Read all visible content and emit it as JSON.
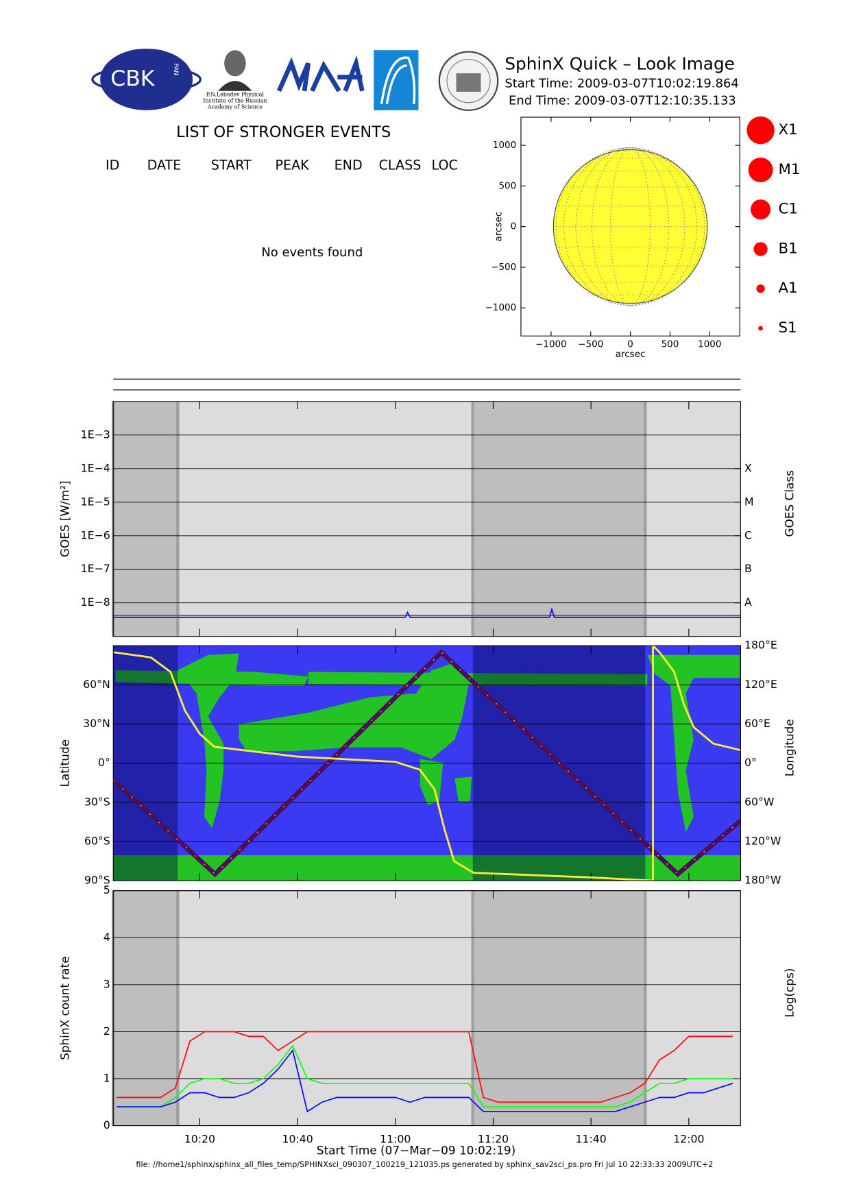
{
  "header": {
    "title": "SphinX Quick – Look Image",
    "start_time": "Start Time: 2009-03-07T10:02:19.864",
    "end_time": "End Time: 2009-03-07T12:10:35.133",
    "logos": [
      "CBK",
      "PAN",
      "P.N.Lebedev Physical",
      "Institute of the Russian",
      "Academy of Science"
    ]
  },
  "events": {
    "title": "LIST OF STRONGER EVENTS",
    "columns": [
      "ID",
      "DATE",
      "START",
      "PEAK",
      "END",
      "CLASS",
      "LOC"
    ],
    "message": "No events found"
  },
  "size_legend": [
    "X1",
    "M1",
    "C1",
    "B1",
    "A1",
    "S1"
  ],
  "footer": "file: //home1/sphinx/sphinx_all_files_temp/SPHINXsci_090307_100219_121035.ps generated by sphinx_sav2sci_ps.pro Fri Jul 10 22:33:33 2009UTC+2",
  "chart_data": [
    {
      "type": "solar-disk",
      "xlabel": "arcsec",
      "ylabel": "arcsec",
      "radius": 970,
      "color": "#ffff33",
      "xlim": [
        -1380,
        1380
      ],
      "ylim": [
        -1346,
        1346
      ],
      "xticks": [
        {
          "value": -1000,
          "label": "−1000"
        },
        {
          "value": -500,
          "label": "−500"
        },
        0,
        500,
        1000
      ],
      "yticks": [
        {
          "value": -1000,
          "label": "−1000"
        },
        {
          "value": -500,
          "label": "−500"
        },
        0,
        500,
        1000
      ]
    },
    {
      "type": "line",
      "log_scale": true,
      "ylabel": "GOES [W/m²]",
      "y2label": "GOES Class",
      "background": "#dcdcdc",
      "shade_color": "#bebebe",
      "xlim": [
        "10:02:19",
        "12:10:35"
      ],
      "xticks": [
        "10:20",
        "10:40",
        "11:00",
        "11:20",
        "11:40",
        "12:00"
      ],
      "shaded": [
        [
          "10:02:19",
          "10:15:30"
        ],
        [
          "11:15:50",
          "11:51:05"
        ]
      ],
      "ylim": [
        1e-09,
        0.01
      ],
      "yticks": [
        {
          "value": 1e-08,
          "label": "1E−8"
        },
        {
          "value": 1e-07,
          "label": "1E−7"
        },
        {
          "value": 1e-06,
          "label": "1E−6"
        },
        {
          "value": 1e-05,
          "label": "1E−5"
        },
        {
          "value": 0.0001,
          "label": "1E−4"
        },
        {
          "value": 0.001,
          "label": "1E−3"
        }
      ],
      "y2lim": [
        1e-09,
        0.01
      ],
      "y2ticks": [
        {
          "value": 1e-08,
          "label": "A"
        },
        {
          "value": 1e-07,
          "label": "B"
        },
        {
          "value": 1e-06,
          "label": "C"
        },
        {
          "value": 1e-05,
          "label": "M"
        },
        {
          "value": 0.0001,
          "label": "X"
        }
      ],
      "x": [
        "10:02:19",
        "10:30:00",
        "11:02:00",
        "11:02:30",
        "11:03:00",
        "11:31:30",
        "11:32:00",
        "11:32:30",
        "12:10:35"
      ],
      "series": [
        {
          "color": "#ff2020",
          "values": [
            4.2e-09,
            4.2e-09,
            4.2e-09,
            4.2e-09,
            4.2e-09,
            4.2e-09,
            4.2e-09,
            4.2e-09,
            4.2e-09
          ]
        },
        {
          "color": "#1010ff",
          "values": [
            3.7e-09,
            3.7e-09,
            3.7e-09,
            5.2e-09,
            3.7e-09,
            3.7e-09,
            6.5e-09,
            3.7e-09,
            3.7e-09
          ]
        }
      ]
    },
    {
      "type": "map",
      "ylabel": "Latitude",
      "y2label": "Longitude",
      "background": "#3a3af2",
      "shade_color": "rgba(0,0,60,0.4)",
      "xlim": [
        "10:02:19",
        "12:10:35"
      ],
      "xticks": [
        "10:20",
        "10:40",
        "11:00",
        "11:20",
        "11:40",
        "12:00"
      ],
      "shaded": [
        [
          "10:02:19",
          "10:15:30"
        ],
        [
          "11:15:50",
          "11:51:05"
        ]
      ],
      "ylim": [
        -90,
        90
      ],
      "yticks": [
        {
          "value": -90,
          "label": "90°S"
        },
        {
          "value": -60,
          "label": "60°S"
        },
        {
          "value": -30,
          "label": "30°S"
        },
        {
          "value": 0,
          "label": "0°"
        },
        {
          "value": 30,
          "label": "30°N"
        },
        {
          "value": 60,
          "label": "60°N"
        }
      ],
      "y2lim": [
        -180,
        180
      ],
      "y2ticks": [
        {
          "value": -180,
          "label": "180°W"
        },
        {
          "value": -120,
          "label": "120°W"
        },
        {
          "value": -60,
          "label": "60°W"
        },
        {
          "value": 0,
          "label": "0°"
        },
        {
          "value": 60,
          "label": "60°E"
        },
        {
          "value": 120,
          "label": "120°E"
        },
        {
          "value": 180,
          "label": "180°E"
        }
      ],
      "series": [
        {
          "color": "#4a0f58",
          "x": [
            "10:02:19",
            "10:23:07",
            "11:09:25",
            "11:57:45",
            "12:10:35"
          ],
          "values": [
            -13,
            -85,
            85,
            -85,
            -44
          ]
        },
        {
          "color": "#ffee33",
          "axis": "y2",
          "x": [
            "10:02:19",
            "10:10:00",
            "10:14:00",
            "10:17:00",
            "10:20:00",
            "10:23:00",
            "10:40:00",
            "11:00:00",
            "11:05:00",
            "11:08:00",
            "11:10:00",
            "11:12:00",
            "11:16:00",
            "11:40:00",
            "11:52:40",
            "11:52:40",
            "11:54:00",
            "11:57:00",
            "11:59:00",
            "12:01:00",
            "12:05:00",
            "12:10:35"
          ],
          "values": [
            170,
            162,
            140,
            80,
            45,
            25,
            10,
            2,
            -10,
            -40,
            -100,
            -150,
            -168,
            -175,
            -180,
            180,
            170,
            140,
            90,
            55,
            30,
            20
          ]
        }
      ]
    },
    {
      "type": "line",
      "ylabel": "SphinX count rate",
      "y2label": "Log(cps)",
      "xlabel": "Start Time (07−Mar−09 10:02:19)",
      "background": "#dcdcdc",
      "shade_color": "#bebebe",
      "xlim": [
        "10:02:19",
        "12:10:35"
      ],
      "xticks": [
        "10:20",
        "10:40",
        "11:00",
        "11:20",
        "11:40",
        "12:00"
      ],
      "shaded": [
        [
          "10:02:19",
          "10:15:30"
        ],
        [
          "11:15:50",
          "11:51:05"
        ]
      ],
      "ylim": [
        0,
        5
      ],
      "yticks": [
        0,
        1,
        2,
        3,
        4,
        5
      ],
      "x": [
        "10:03",
        "10:06",
        "10:09",
        "10:12",
        "10:15",
        "10:18",
        "10:21",
        "10:24",
        "10:27",
        "10:30",
        "10:33",
        "10:36",
        "10:39",
        "10:42",
        "10:45",
        "10:48",
        "10:51",
        "10:54",
        "10:57",
        "11:00",
        "11:03",
        "11:06",
        "11:09",
        "11:12",
        "11:15",
        "11:18",
        "11:21",
        "11:24",
        "11:27",
        "11:30",
        "11:33",
        "11:36",
        "11:39",
        "11:42",
        "11:45",
        "11:48",
        "11:51",
        "11:54",
        "11:57",
        "12:00",
        "12:03",
        "12:06",
        "12:09"
      ],
      "series": [
        {
          "color": "#ff1010",
          "values": [
            0.6,
            0.6,
            0.6,
            0.6,
            0.8,
            1.8,
            2.0,
            2.0,
            2.0,
            1.9,
            1.9,
            1.6,
            1.8,
            2.0,
            2.0,
            2.0,
            2.0,
            2.0,
            2.0,
            2.0,
            2.0,
            2.0,
            2.0,
            2.0,
            2.0,
            0.6,
            0.5,
            0.5,
            0.5,
            0.5,
            0.5,
            0.5,
            0.5,
            0.5,
            0.6,
            0.7,
            0.9,
            1.4,
            1.6,
            1.9,
            1.9,
            1.9,
            1.9
          ]
        },
        {
          "color": "#10ff10",
          "values": [
            0.4,
            0.4,
            0.4,
            0.4,
            0.6,
            0.9,
            1.0,
            1.0,
            0.9,
            0.9,
            1.0,
            1.3,
            1.7,
            1.0,
            0.9,
            0.9,
            0.9,
            0.9,
            0.9,
            0.9,
            0.9,
            0.9,
            0.9,
            0.9,
            0.9,
            0.4,
            0.4,
            0.4,
            0.4,
            0.4,
            0.4,
            0.4,
            0.4,
            0.4,
            0.4,
            0.5,
            0.7,
            0.9,
            0.9,
            1.0,
            1.0,
            1.0,
            1.0
          ]
        },
        {
          "color": "#1010ff",
          "values": [
            0.4,
            0.4,
            0.4,
            0.4,
            0.5,
            0.7,
            0.7,
            0.6,
            0.6,
            0.7,
            0.9,
            1.2,
            1.6,
            0.3,
            0.5,
            0.6,
            0.6,
            0.6,
            0.6,
            0.6,
            0.5,
            0.6,
            0.6,
            0.6,
            0.6,
            0.3,
            0.3,
            0.3,
            0.3,
            0.3,
            0.3,
            0.3,
            0.3,
            0.3,
            0.3,
            0.4,
            0.5,
            0.6,
            0.6,
            0.7,
            0.7,
            0.8,
            0.9
          ]
        }
      ]
    }
  ]
}
